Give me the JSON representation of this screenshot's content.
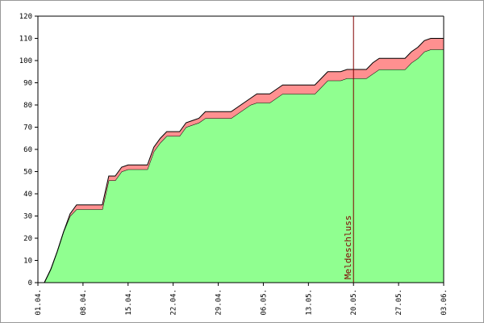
{
  "chart_data": {
    "type": "stacked-area",
    "x": [
      1,
      2,
      3,
      4,
      5,
      6,
      7,
      8,
      9,
      10,
      11,
      12,
      13,
      14,
      15,
      16,
      17,
      18,
      19,
      20,
      21,
      22,
      23,
      24,
      25,
      26,
      27,
      28,
      29,
      30,
      31,
      32,
      33,
      34,
      35,
      36,
      37,
      38,
      39,
      40,
      41,
      42,
      43,
      44,
      45,
      46,
      47,
      48,
      49,
      50,
      51,
      52,
      53,
      54,
      55,
      56,
      57,
      58,
      59,
      60,
      61,
      62,
      63
    ],
    "series": [
      {
        "color": "#90ff90",
        "values": [
          0,
          6,
          14,
          23,
          30,
          33,
          33,
          33,
          33,
          33,
          46,
          46,
          50,
          51,
          51,
          51,
          51,
          59,
          63,
          66,
          66,
          66,
          70,
          71,
          72,
          74,
          74,
          74,
          74,
          74,
          76,
          78,
          80,
          81,
          81,
          81,
          83,
          85,
          85,
          85,
          85,
          85,
          85,
          88,
          91,
          91,
          91,
          92,
          92,
          92,
          92,
          94,
          96,
          96,
          96,
          96,
          96,
          99,
          101,
          104,
          105,
          105,
          105
        ]
      },
      {
        "color": "#ff9090",
        "values": [
          0,
          0,
          0,
          0,
          1,
          2,
          2,
          2,
          2,
          2,
          2,
          2,
          2,
          2,
          2,
          2,
          2,
          2,
          2,
          2,
          2,
          2,
          2,
          2,
          2,
          3,
          3,
          3,
          3,
          3,
          3,
          3,
          3,
          4,
          4,
          4,
          4,
          4,
          4,
          4,
          4,
          4,
          4,
          4,
          4,
          4,
          4,
          4,
          4,
          4,
          4,
          5,
          5,
          5,
          5,
          5,
          5,
          5,
          5,
          5,
          5,
          5,
          5
        ]
      }
    ],
    "xlim": [
      0,
      63
    ],
    "xticks": [
      {
        "value": 0,
        "label": "01.04."
      },
      {
        "value": 7,
        "label": "08.04."
      },
      {
        "value": 14,
        "label": "15.04."
      },
      {
        "value": 21,
        "label": "22.04."
      },
      {
        "value": 28,
        "label": "29.04."
      },
      {
        "value": 35,
        "label": "06.05."
      },
      {
        "value": 42,
        "label": "13.05."
      },
      {
        "value": 49,
        "label": "20.05."
      },
      {
        "value": 56,
        "label": "27.05."
      },
      {
        "value": 63,
        "label": "03.06."
      }
    ],
    "ylim": [
      0,
      120
    ],
    "yticks": [
      0,
      10,
      20,
      30,
      40,
      50,
      60,
      70,
      80,
      90,
      100,
      110,
      120
    ],
    "annotation": {
      "text": "Meldeschluss",
      "x": 49,
      "color": "#800000"
    }
  }
}
